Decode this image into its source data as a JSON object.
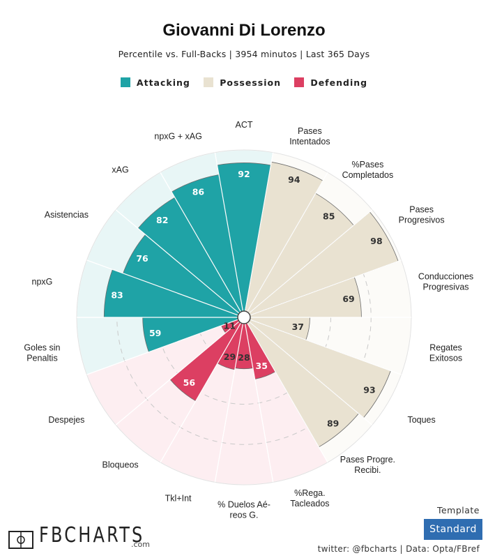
{
  "header": {
    "title": "Giovanni Di Lorenzo",
    "subtitle": "Percentile vs. Full-Backs | 3954 minutos | Last 365 Days"
  },
  "legend": [
    {
      "label": "Attacking",
      "color": "#1fa3a6"
    },
    {
      "label": "Possession",
      "color": "#e9e2d1"
    },
    {
      "label": "Defending",
      "color": "#dc3f62"
    }
  ],
  "chart_data": {
    "type": "radial_bar",
    "max": 100,
    "categories": [
      {
        "label": [
          "ACT"
        ],
        "value": 92,
        "group": "Possession-Attacking",
        "fill": "#1fa3a6"
      },
      {
        "label": [
          "Pases",
          "Intentados"
        ],
        "value": 94,
        "group": "Possession",
        "fill": "#e9e2d1"
      },
      {
        "label": [
          "%Pases",
          "Completados"
        ],
        "value": 85,
        "group": "Possession",
        "fill": "#e9e2d1"
      },
      {
        "label": [
          "Pases",
          "Progresivos"
        ],
        "value": 98,
        "group": "Possession",
        "fill": "#e9e2d1"
      },
      {
        "label": [
          "Conducciones",
          "Progresivas"
        ],
        "value": 69,
        "group": "Possession",
        "fill": "#e9e2d1"
      },
      {
        "label": [
          "Regates",
          "Exitosos"
        ],
        "value": 37,
        "group": "Possession",
        "fill": "#e9e2d1"
      },
      {
        "label": [
          "Toques"
        ],
        "value": 93,
        "group": "Possession",
        "fill": "#e9e2d1"
      },
      {
        "label": [
          "Pases Progre.",
          "Recibi."
        ],
        "value": 89,
        "group": "Possession",
        "fill": "#e9e2d1"
      },
      {
        "label": [
          "%Rega.",
          "Tacleados"
        ],
        "value": 35,
        "group": "Defending",
        "fill": "#dc3f62"
      },
      {
        "label": [
          "% Duelos Aé-",
          "reos G."
        ],
        "value": 28,
        "group": "Defending",
        "fill": "#dc3f62"
      },
      {
        "label": [
          "Tkl+Int"
        ],
        "value": 29,
        "group": "Defending",
        "fill": "#dc3f62"
      },
      {
        "label": [
          "Bloqueos"
        ],
        "value": 56,
        "group": "Defending",
        "fill": "#dc3f62"
      },
      {
        "label": [
          "Despejes"
        ],
        "value": 11,
        "group": "Defending",
        "fill": "#dc3f62"
      },
      {
        "label": [
          "Goles sin",
          "Penaltis"
        ],
        "value": 59,
        "group": "Attacking",
        "fill": "#1fa3a6"
      },
      {
        "label": [
          "npxG"
        ],
        "value": 83,
        "group": "Attacking",
        "fill": "#1fa3a6"
      },
      {
        "label": [
          "Asistencias"
        ],
        "value": 76,
        "group": "Attacking",
        "fill": "#1fa3a6"
      },
      {
        "label": [
          "xAG"
        ],
        "value": 82,
        "group": "Attacking",
        "fill": "#1fa3a6"
      },
      {
        "label": [
          "npxG + xAG"
        ],
        "value": 86,
        "group": "Attacking",
        "fill": "#1fa3a6"
      }
    ],
    "grid": [
      25,
      50,
      75
    ],
    "background_colors": {
      "Attacking": "#e8f6f6",
      "Possession": "#fcfbf8",
      "Defending": "#fdeef1"
    }
  },
  "footer": {
    "logo": "FBCHARTS",
    "logo_suffix": ".com",
    "template_label": "Template",
    "template_value": "Standard",
    "credit": "twitter: @fbcharts | Data: Opta/FBref"
  }
}
